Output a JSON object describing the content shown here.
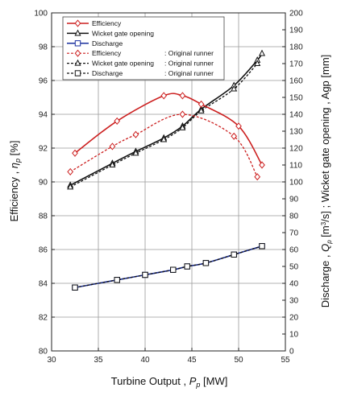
{
  "chart_data": {
    "type": "line",
    "xlabel_main": "Turbine Output , ",
    "xlabel_sym": "P",
    "xlabel_sub": "p",
    "xlabel_unit": " [MW]",
    "ylabel_left_main": "Efficiency , ",
    "ylabel_left_sym": "η",
    "ylabel_left_sub": "p",
    "ylabel_left_unit": " [%]",
    "ylabel_right_main": "Discharge , ",
    "ylabel_right_sym": "Q",
    "ylabel_right_sub": "p",
    "ylabel_right_unit": " [m",
    "ylabel_right_sup": "3",
    "ylabel_right_unit2": "/s]  ;  Wicket gate opening , Agp [mm]",
    "xlim": [
      30,
      55
    ],
    "xticks": [
      "30",
      "35",
      "40",
      "45",
      "50",
      "55"
    ],
    "ylim_left": [
      80,
      100
    ],
    "yticks_left": [
      "80",
      "82",
      "84",
      "86",
      "88",
      "90",
      "92",
      "94",
      "96",
      "98",
      "100"
    ],
    "ylim_right": [
      0,
      200
    ],
    "yticks_right": [
      "0",
      "10",
      "20",
      "30",
      "40",
      "50",
      "60",
      "70",
      "80",
      "90",
      "100",
      "110",
      "120",
      "130",
      "140",
      "150",
      "160",
      "170",
      "180",
      "190",
      "200"
    ],
    "grid": true,
    "legend_position": "top-left",
    "series": [
      {
        "name": "Efficiency",
        "axis": "left",
        "color": "#cc1f1f",
        "style": "solid",
        "marker": "diamond",
        "x": [
          32.5,
          37,
          42,
          44,
          46,
          50,
          52.5
        ],
        "y": [
          91.7,
          93.6,
          95.1,
          95.1,
          94.6,
          93.3,
          91.0
        ]
      },
      {
        "name": "Wicket gate opening",
        "axis": "right",
        "color": "#111111",
        "style": "solid",
        "marker": "triangle",
        "x": [
          32,
          36.5,
          39,
          42,
          44,
          46,
          49.5,
          52,
          52.5
        ],
        "y": [
          98,
          111,
          118,
          126,
          133,
          143,
          157,
          172,
          176
        ]
      },
      {
        "name": "Discharge",
        "axis": "right",
        "color": "#1a2f9e",
        "style": "solid",
        "marker": "square",
        "x": [
          32.5,
          37,
          40,
          43,
          44.5,
          46.5,
          49.5,
          52.5
        ],
        "y": [
          37.5,
          42,
          45,
          48,
          50,
          52,
          57,
          62
        ]
      },
      {
        "name": "Efficiency",
        "suffix": ": Original runner",
        "axis": "left",
        "color": "#cc1f1f",
        "style": "dashed",
        "marker": "diamond-open",
        "x": [
          32,
          36.5,
          39,
          44,
          49.5,
          52
        ],
        "y": [
          90.6,
          92.1,
          92.8,
          94.0,
          92.7,
          90.3
        ]
      },
      {
        "name": "Wicket gate opening",
        "suffix": ": Original runner",
        "axis": "right",
        "color": "#111111",
        "style": "dashed",
        "marker": "triangle-open",
        "x": [
          32,
          36.5,
          39,
          42,
          44,
          46,
          49.5,
          52
        ],
        "y": [
          97,
          110,
          117,
          125,
          132,
          142,
          155,
          170
        ]
      },
      {
        "name": "Discharge",
        "suffix": ": Original runner",
        "axis": "right",
        "color": "#111111",
        "style": "dashed",
        "marker": "square-open",
        "x": [
          32.5,
          37,
          40,
          43,
          44.5,
          46.5,
          49.5,
          52.5
        ],
        "y": [
          37.5,
          42,
          45,
          48,
          50,
          52,
          57,
          62
        ]
      }
    ]
  }
}
